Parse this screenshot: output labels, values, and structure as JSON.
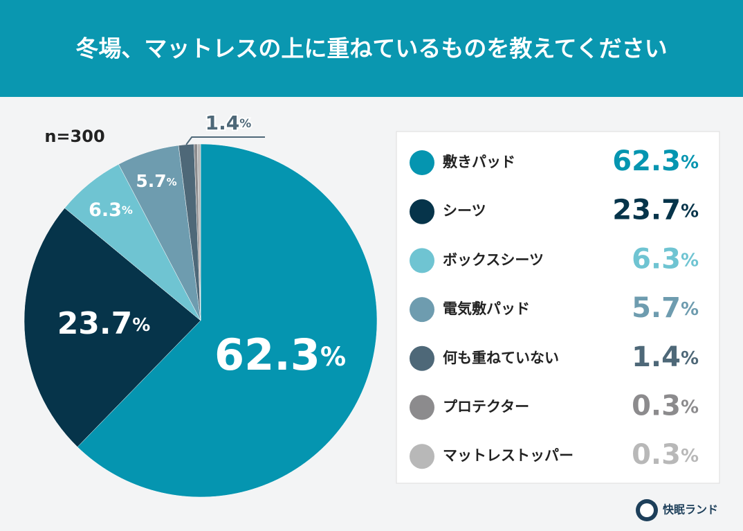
{
  "chart_data": {
    "type": "pie",
    "title": "冬場、マットレスの上に重ねているものを教えてください",
    "subtitle": "n=300",
    "categories": [
      "敷きパッド",
      "シーツ",
      "ボックスシーツ",
      "電気敷パッド",
      "何も重ねていない",
      "プロテクター",
      "マットレストッパー"
    ],
    "values": [
      62.3,
      23.7,
      6.3,
      5.7,
      1.4,
      0.3,
      0.3
    ],
    "value_labels": [
      "62.3%",
      "23.7%",
      "6.3%",
      "5.7%",
      "1.4%",
      "0.3%",
      "0.3%"
    ],
    "colors": [
      "#0595b0",
      "#06344a",
      "#6fc4d2",
      "#6e9caf",
      "#4e6878",
      "#8c8b8d",
      "#b8b8b8"
    ],
    "legend": "right"
  },
  "brand": "快眠ランド"
}
